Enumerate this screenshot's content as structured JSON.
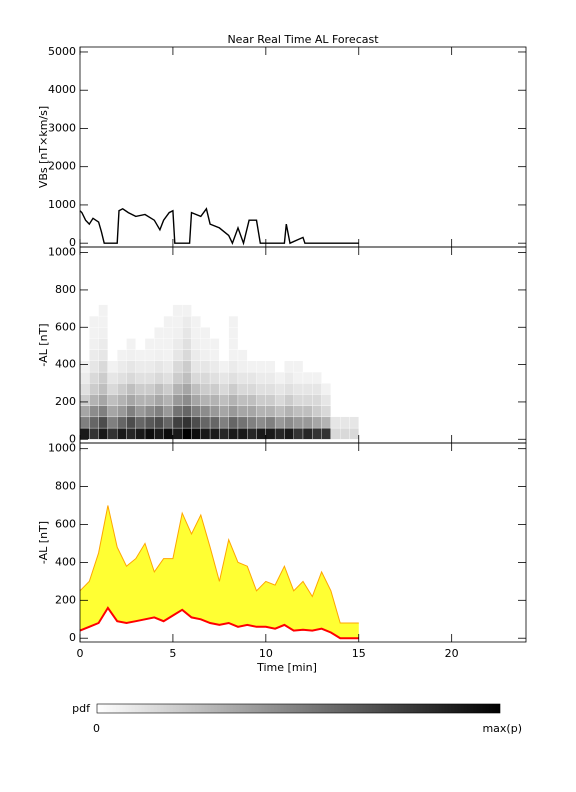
{
  "chart_data": [
    {
      "type": "line",
      "title": "Near Real Time AL Forecast",
      "ylabel": "VBs [nT×km/s]",
      "x": [
        0,
        0.1,
        0.3,
        0.5,
        0.7,
        1.0,
        1.15,
        1.3,
        2.0,
        2.1,
        2.3,
        2.6,
        3.0,
        3.5,
        4.0,
        4.3,
        4.5,
        4.8,
        5.0,
        5.1,
        5.9,
        6.0,
        6.5,
        6.8,
        7.0,
        7.5,
        8.0,
        8.2,
        8.5,
        8.8,
        9.1,
        9.5,
        9.7,
        11.0,
        11.1,
        11.3,
        12.0,
        12.1,
        15.0
      ],
      "values": [
        850,
        800,
        600,
        500,
        650,
        550,
        300,
        0,
        0,
        850,
        900,
        800,
        700,
        750,
        600,
        350,
        600,
        800,
        850,
        0,
        0,
        800,
        700,
        900,
        500,
        400,
        200,
        0,
        400,
        0,
        600,
        600,
        0,
        0,
        500,
        0,
        150,
        0,
        0
      ],
      "color": "#000000",
      "xlim": [
        0,
        24
      ],
      "ylim": [
        -100,
        5130
      ],
      "yticks": [
        0,
        1000,
        2000,
        3000,
        4000,
        5000
      ]
    },
    {
      "type": "heatmap",
      "ylabel": "-AL [nT]",
      "x_bins": [
        0,
        0.5,
        1,
        1.5,
        2,
        2.5,
        3,
        3.5,
        4,
        4.5,
        5,
        5.5,
        6,
        6.5,
        7,
        7.5,
        8,
        8.5,
        9,
        9.5,
        10,
        10.5,
        11,
        11.5,
        12,
        12.5,
        13,
        13.5,
        14,
        14.5,
        15
      ],
      "y_bins": [
        0,
        60,
        120,
        180,
        240,
        300,
        360,
        420,
        480,
        540,
        600,
        660,
        720
      ],
      "z": [
        [
          0.9,
          0.8,
          0.9,
          0.8,
          0.9,
          0.85,
          0.9,
          0.95,
          0.9,
          0.95,
          0.9,
          1,
          0.95,
          0.9,
          0.9,
          0.85,
          0.9,
          0.9,
          0.85,
          0.9,
          0.9,
          0.85,
          0.9,
          0.8,
          0.85,
          0.8,
          0.8,
          0.15,
          0.15,
          0.15
        ],
        [
          0.5,
          0.6,
          0.7,
          0.5,
          0.6,
          0.7,
          0.6,
          0.65,
          0.7,
          0.6,
          0.75,
          0.8,
          0.7,
          0.6,
          0.6,
          0.5,
          0.6,
          0.55,
          0.5,
          0.45,
          0.5,
          0.4,
          0.45,
          0.4,
          0.4,
          0.35,
          0.3,
          0.1,
          0.1,
          0.1
        ],
        [
          0.35,
          0.45,
          0.5,
          0.35,
          0.4,
          0.5,
          0.4,
          0.45,
          0.5,
          0.4,
          0.55,
          0.6,
          0.5,
          0.45,
          0.4,
          0.35,
          0.4,
          0.35,
          0.35,
          0.3,
          0.3,
          0.25,
          0.3,
          0.25,
          0.25,
          0.2,
          0.15,
          0,
          0,
          0
        ],
        [
          0.2,
          0.3,
          0.35,
          0.25,
          0.3,
          0.35,
          0.3,
          0.3,
          0.35,
          0.3,
          0.4,
          0.45,
          0.35,
          0.3,
          0.3,
          0.25,
          0.3,
          0.25,
          0.25,
          0.2,
          0.2,
          0.15,
          0.2,
          0.15,
          0.15,
          0.15,
          0.1,
          0,
          0,
          0
        ],
        [
          0.12,
          0.2,
          0.25,
          0.15,
          0.2,
          0.25,
          0.2,
          0.2,
          0.25,
          0.2,
          0.3,
          0.35,
          0.25,
          0.2,
          0.2,
          0.15,
          0.2,
          0.15,
          0.15,
          0.12,
          0.12,
          0.1,
          0.12,
          0.1,
          0.1,
          0.1,
          0.05,
          0,
          0,
          0
        ],
        [
          0.08,
          0.15,
          0.2,
          0.1,
          0.12,
          0.15,
          0.12,
          0.12,
          0.15,
          0.12,
          0.2,
          0.25,
          0.15,
          0.15,
          0.12,
          0.1,
          0.12,
          0.1,
          0.1,
          0.08,
          0.08,
          0.05,
          0.08,
          0.05,
          0.05,
          0.05,
          0,
          0,
          0,
          0
        ],
        [
          0.05,
          0.1,
          0.15,
          0.05,
          0.08,
          0.1,
          0.08,
          0.08,
          0.1,
          0.08,
          0.15,
          0.2,
          0.1,
          0.1,
          0.08,
          0.05,
          0.08,
          0.06,
          0.05,
          0.05,
          0.05,
          0,
          0.05,
          0.05,
          0,
          0,
          0,
          0,
          0,
          0
        ],
        [
          0,
          0.08,
          0.1,
          0,
          0.05,
          0.06,
          0.05,
          0.05,
          0.06,
          0.05,
          0.1,
          0.15,
          0.08,
          0.06,
          0.05,
          0,
          0.05,
          0.05,
          0,
          0,
          0,
          0,
          0,
          0,
          0,
          0,
          0,
          0,
          0,
          0
        ],
        [
          0,
          0.06,
          0.08,
          0,
          0,
          0.05,
          0,
          0.05,
          0.05,
          0.05,
          0.08,
          0.12,
          0.06,
          0.05,
          0.05,
          0,
          0.05,
          0,
          0,
          0,
          0,
          0,
          0,
          0,
          0,
          0,
          0,
          0,
          0,
          0
        ],
        [
          0,
          0.05,
          0.06,
          0,
          0,
          0,
          0,
          0,
          0.05,
          0.05,
          0.06,
          0.1,
          0.05,
          0.05,
          0,
          0,
          0.05,
          0,
          0,
          0,
          0,
          0,
          0,
          0,
          0,
          0,
          0,
          0,
          0,
          0
        ],
        [
          0,
          0.05,
          0.05,
          0,
          0,
          0,
          0,
          0,
          0,
          0.05,
          0.05,
          0.08,
          0.05,
          0,
          0,
          0,
          0.05,
          0,
          0,
          0,
          0,
          0,
          0,
          0,
          0,
          0,
          0,
          0,
          0,
          0
        ],
        [
          0,
          0,
          0.05,
          0,
          0,
          0,
          0,
          0,
          0,
          0,
          0.05,
          0.05,
          0,
          0,
          0,
          0,
          0,
          0,
          0,
          0,
          0,
          0,
          0,
          0,
          0,
          0,
          0,
          0,
          0,
          0
        ]
      ],
      "xlim": [
        0,
        24
      ],
      "ylim": [
        -20,
        1030
      ],
      "yticks": [
        0,
        200,
        400,
        600,
        800,
        1000
      ],
      "colorbar_label": "pdf",
      "colorbar_min_label": "0",
      "colorbar_max_label": "max(p)"
    },
    {
      "type": "band",
      "ylabel": "-AL [nT]",
      "xlabel": "Time [min]",
      "x": [
        0,
        0.5,
        1,
        1.5,
        2,
        2.5,
        3,
        3.5,
        4,
        4.5,
        5,
        5.5,
        6,
        6.5,
        7,
        7.5,
        8,
        8.5,
        9,
        9.5,
        10,
        10.5,
        11,
        11.5,
        12,
        12.5,
        13,
        13.5,
        14,
        14.5,
        15
      ],
      "fill": "#ffff33",
      "series": [
        {
          "color": "#ffa500",
          "values": [
            250,
            300,
            450,
            700,
            480,
            380,
            420,
            500,
            350,
            420,
            420,
            660,
            550,
            650,
            480,
            300,
            520,
            400,
            380,
            250,
            300,
            280,
            380,
            250,
            300,
            220,
            350,
            250,
            80,
            80,
            80
          ]
        },
        {
          "color": "#ff0000",
          "values": [
            40,
            60,
            80,
            160,
            90,
            80,
            90,
            100,
            110,
            90,
            120,
            150,
            110,
            100,
            80,
            70,
            80,
            60,
            70,
            60,
            60,
            50,
            70,
            40,
            45,
            40,
            50,
            30,
            0,
            0,
            0
          ]
        }
      ],
      "xlim": [
        0,
        24
      ],
      "ylim": [
        -20,
        1030
      ],
      "yticks": [
        0,
        200,
        400,
        600,
        800,
        1000
      ],
      "xticks": [
        0,
        5,
        10,
        15,
        20
      ]
    }
  ]
}
